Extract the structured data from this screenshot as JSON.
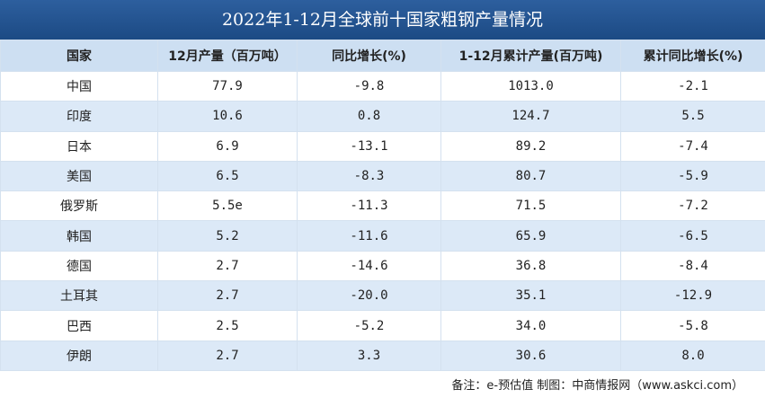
{
  "title": "2022年1-12月全球前十国家粗钢产量情况",
  "table": {
    "header": [
      "国家",
      "12月产量（百万吨）",
      "同比增长(%)",
      "1-12月累计产量(百万吨)",
      "累计同比增长(%)"
    ],
    "rows": [
      [
        "中国",
        "77.9",
        "-9.8",
        "1013.0",
        "-2.1"
      ],
      [
        "印度",
        "10.6",
        "0.8",
        "124.7",
        "5.5"
      ],
      [
        "日本",
        "6.9",
        "-13.1",
        "89.2",
        "-7.4"
      ],
      [
        "美国",
        "6.5",
        "-8.3",
        "80.7",
        "-5.9"
      ],
      [
        "俄罗斯",
        "5.5e",
        "-11.3",
        "71.5",
        "-7.2"
      ],
      [
        "韩国",
        "5.2",
        "-11.6",
        "65.9",
        "-6.5"
      ],
      [
        "德国",
        "2.7",
        "-14.6",
        "36.8",
        "-8.4"
      ],
      [
        "土耳其",
        "2.7",
        "-20.0",
        "35.1",
        "-12.9"
      ],
      [
        "巴西",
        "2.5",
        "-5.2",
        "34.0",
        "-5.8"
      ],
      [
        "伊朗",
        "2.7",
        "3.3",
        "30.6",
        "8.0"
      ]
    ]
  },
  "note": "备注：e-预估值 制图：中商情报网（www.askci.com）"
}
